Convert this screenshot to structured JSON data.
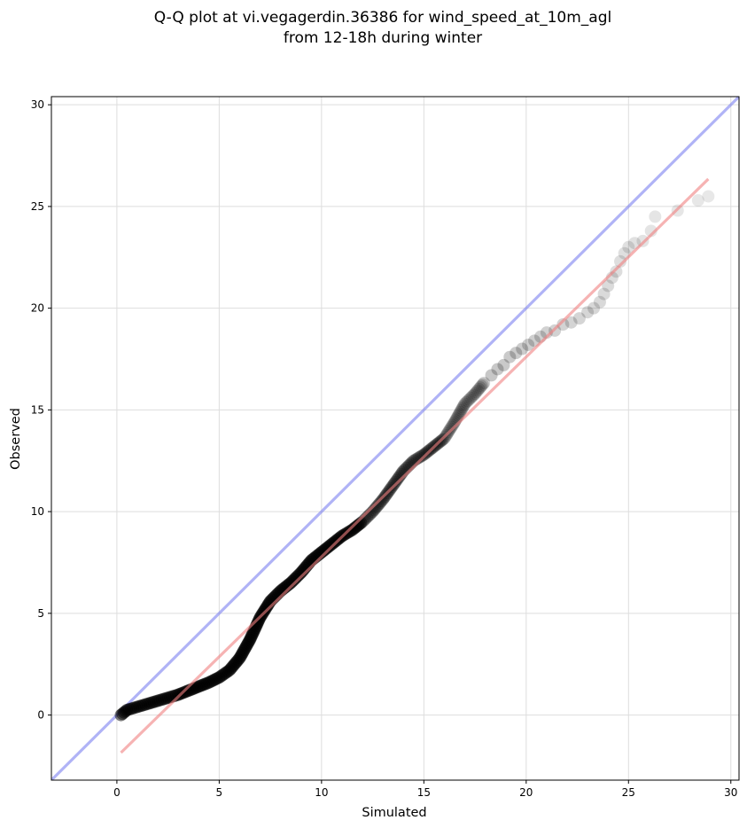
{
  "chart_data": {
    "type": "scatter",
    "title_line1": "Q-Q plot at vi.vegagerdin.36386 for wind_speed_at_10m_agl",
    "title_line2": "from 12-18h during winter",
    "xlabel": "Simulated",
    "ylabel": "Observed",
    "xlim": [
      -3.2,
      30.4
    ],
    "ylim": [
      -3.2,
      30.4
    ],
    "xticks": [
      0,
      5,
      10,
      15,
      20,
      25,
      30
    ],
    "yticks": [
      0,
      5,
      10,
      15,
      20,
      25,
      30
    ],
    "grid": true,
    "point_color": "#000000",
    "identity_line": {
      "color": "#7b80f0",
      "from": [
        -3.2,
        -3.2
      ],
      "to": [
        30.4,
        30.4
      ]
    },
    "fit_line": {
      "color": "#f08080",
      "from": [
        0.2,
        -1.85
      ],
      "to": [
        28.9,
        26.35
      ]
    },
    "quantile_curve": [
      [
        0.2,
        0.0
      ],
      [
        0.5,
        0.25
      ],
      [
        1.0,
        0.4
      ],
      [
        1.5,
        0.55
      ],
      [
        2.0,
        0.7
      ],
      [
        2.5,
        0.85
      ],
      [
        3.0,
        1.0
      ],
      [
        3.5,
        1.2
      ],
      [
        4.0,
        1.4
      ],
      [
        4.5,
        1.6
      ],
      [
        5.0,
        1.85
      ],
      [
        5.5,
        2.2
      ],
      [
        6.0,
        2.8
      ],
      [
        6.5,
        3.7
      ],
      [
        7.0,
        4.8
      ],
      [
        7.5,
        5.6
      ],
      [
        8.0,
        6.1
      ],
      [
        8.5,
        6.5
      ],
      [
        9.0,
        7.0
      ],
      [
        9.5,
        7.6
      ],
      [
        10.0,
        8.0
      ],
      [
        10.5,
        8.4
      ],
      [
        11.0,
        8.8
      ],
      [
        11.5,
        9.1
      ],
      [
        12.0,
        9.5
      ],
      [
        12.5,
        10.0
      ],
      [
        13.0,
        10.6
      ],
      [
        13.5,
        11.3
      ],
      [
        14.0,
        12.0
      ],
      [
        14.5,
        12.5
      ],
      [
        15.0,
        12.8
      ],
      [
        15.5,
        13.2
      ],
      [
        16.0,
        13.6
      ],
      [
        16.5,
        14.4
      ],
      [
        17.0,
        15.3
      ],
      [
        17.5,
        15.8
      ],
      [
        18.0,
        16.4
      ]
    ],
    "tail_points": [
      [
        18.3,
        16.7
      ],
      [
        18.6,
        17.0
      ],
      [
        18.9,
        17.2
      ],
      [
        19.2,
        17.6
      ],
      [
        19.5,
        17.8
      ],
      [
        19.8,
        18.0
      ],
      [
        20.1,
        18.2
      ],
      [
        20.4,
        18.4
      ],
      [
        20.7,
        18.6
      ],
      [
        21.0,
        18.8
      ],
      [
        21.4,
        18.9
      ],
      [
        21.8,
        19.2
      ],
      [
        22.2,
        19.3
      ],
      [
        22.6,
        19.5
      ],
      [
        23.0,
        19.8
      ],
      [
        23.3,
        20.0
      ],
      [
        23.6,
        20.3
      ],
      [
        23.8,
        20.7
      ],
      [
        24.0,
        21.1
      ],
      [
        24.2,
        21.5
      ],
      [
        24.4,
        21.8
      ],
      [
        24.6,
        22.3
      ],
      [
        24.8,
        22.7
      ],
      [
        25.0,
        23.0
      ],
      [
        25.3,
        23.2
      ],
      [
        25.7,
        23.3
      ],
      [
        26.1,
        23.8
      ],
      [
        26.3,
        24.5
      ],
      [
        27.4,
        24.8
      ],
      [
        28.4,
        25.3
      ],
      [
        28.9,
        25.5
      ]
    ]
  }
}
